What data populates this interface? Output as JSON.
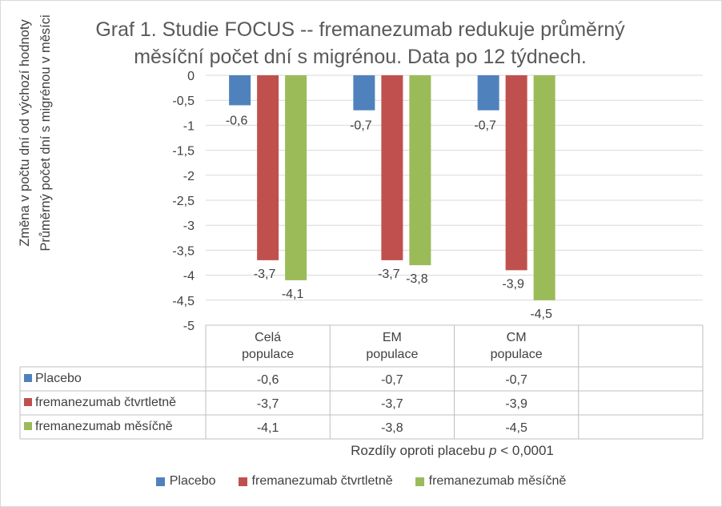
{
  "chart_data": {
    "type": "bar",
    "title": "Graf 1. Studie FOCUS -- fremanezumab redukuje průměrný\nměsíční počet dní s migrénou. Data po 12 týdnech.",
    "ylabel": "Změna v počtu dní od výchozí hodnoty\nPrůměrný počet dní s migrénou v měsíci",
    "categories": [
      "Celá\npopulace",
      "EM\npopulace",
      "CM\npopulace"
    ],
    "ylim": [
      -5,
      0
    ],
    "yticks": [
      "0",
      "-0,5",
      "-1",
      "-1,5",
      "-2",
      "-2,5",
      "-3",
      "-3,5",
      "-4",
      "-4,5",
      "-5"
    ],
    "grid": true,
    "data_table": true,
    "legend_position": "bottom",
    "series": [
      {
        "name": "Placebo",
        "color": "#4f81bd",
        "values": [
          -0.6,
          -0.7,
          -0.7
        ],
        "labels": [
          "-0,6",
          "-0,7",
          "-0,7"
        ]
      },
      {
        "name": "fremanezumab čtvrtletně",
        "color": "#c0504d",
        "values": [
          -3.7,
          -3.7,
          -3.9
        ],
        "labels": [
          "-3,7",
          "-3,7",
          "-3,9"
        ]
      },
      {
        "name": "fremanezumab měsíčně",
        "color": "#9bbb59",
        "values": [
          -4.1,
          -3.8,
          -4.5
        ],
        "labels": [
          "-4,1",
          "-3,8",
          "-4,5"
        ]
      }
    ]
  },
  "note": {
    "prefix": "Rozdíly oproti placebu ",
    "p": "p",
    "suffix": " < 0,0001"
  }
}
